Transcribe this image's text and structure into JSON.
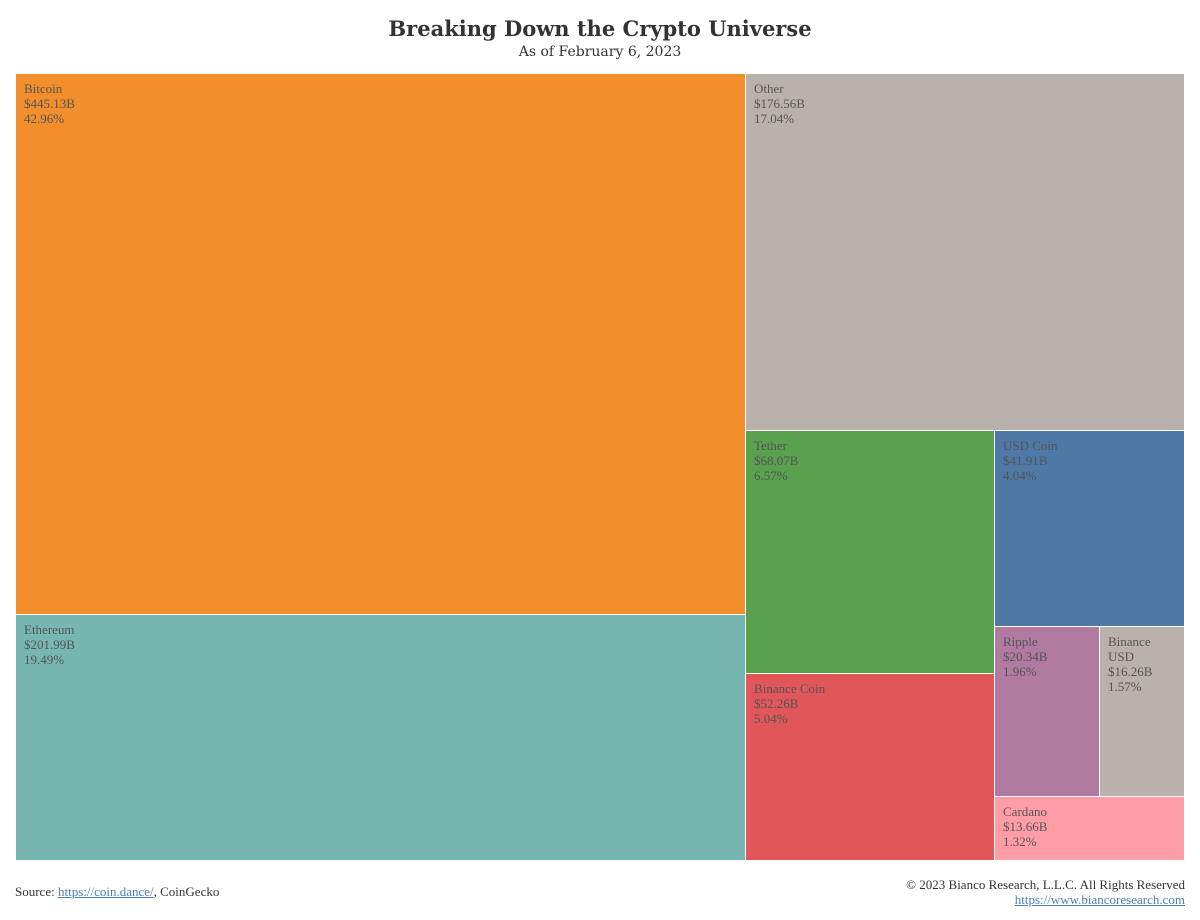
{
  "title": "Breaking Down the Crypto Universe",
  "subtitle": "As of February 6, 2023",
  "chart_data": {
    "type": "treemap",
    "title": "Breaking Down the Crypto Universe",
    "subtitle": "As of February 6, 2023",
    "items": [
      {
        "name": "Bitcoin",
        "value_label": "$445.13B",
        "value": 445.13,
        "share_label": "42.96%",
        "share": 42.96,
        "color": "#F28E2B"
      },
      {
        "name": "Ethereum",
        "value_label": "$201.99B",
        "value": 201.99,
        "share_label": "19.49%",
        "share": 19.49,
        "color": "#76B7B2"
      },
      {
        "name": "Other",
        "value_label": "$176.56B",
        "value": 176.56,
        "share_label": "17.04%",
        "share": 17.04,
        "color": "#BAB0AC"
      },
      {
        "name": "Tether",
        "value_label": "$68.07B",
        "value": 68.07,
        "share_label": "6.57%",
        "share": 6.57,
        "color": "#59A14F"
      },
      {
        "name": "Binance Coin",
        "value_label": "$52.26B",
        "value": 52.26,
        "share_label": "5.04%",
        "share": 5.04,
        "color": "#E15759"
      },
      {
        "name": "USD Coin",
        "value_label": "$41.91B",
        "value": 41.91,
        "share_label": "4.04%",
        "share": 4.04,
        "color": "#4E79A7"
      },
      {
        "name": "Ripple",
        "value_label": "$20.34B",
        "value": 20.34,
        "share_label": "1.96%",
        "share": 1.96,
        "color": "#B07AA1"
      },
      {
        "name": "Binance USD",
        "value_label": "$16.26B",
        "value": 16.26,
        "share_label": "1.57%",
        "share": 1.57,
        "color": "#BAB0AC"
      },
      {
        "name": "Cardano",
        "value_label": "$13.66B",
        "value": 13.66,
        "share_label": "1.32%",
        "share": 1.32,
        "color": "#FF9DA7"
      }
    ]
  },
  "footer": {
    "source_prefix": "Source:",
    "source_link": "https://coin.dance/",
    "source_suffix": ",  CoinGecko",
    "copyright": "© 2023 Bianco Research, L.L.C. All Rights Reserved",
    "website": "https://www.biancoresearch.com"
  }
}
